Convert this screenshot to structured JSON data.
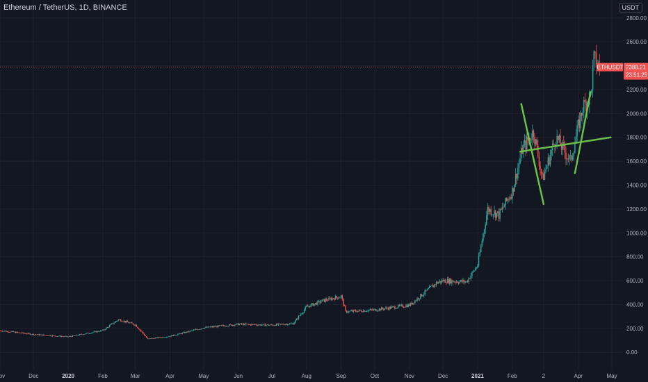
{
  "header": {
    "symbol_title": "Ethereum / TetherUS, 1D, BINANCE",
    "currency": "USDT"
  },
  "price_label": {
    "ticker": "ETHUSDT",
    "price": "2388.21",
    "countdown": "23:51:25",
    "value": 2388.21
  },
  "colors": {
    "background": "#131722",
    "up": "#26a69a",
    "down": "#ef5350",
    "trendline": "#6dbf4b",
    "grid": "#1e222d",
    "price_line": "#ef5350"
  },
  "chart_data": {
    "type": "candlestick",
    "title": "Ethereum / TetherUS, 1D, BINANCE",
    "ylim": [
      -150,
      2950
    ],
    "y_ticks": [
      "0.00",
      "200.00",
      "400.00",
      "600.00",
      "800.00",
      "1000.00",
      "1200.00",
      "1400.00",
      "1600.00",
      "1800.00",
      "2000.00",
      "2200.00",
      "2400.00",
      "2600.00",
      "2800.00"
    ],
    "x_ticks": [
      "Nov",
      "Dec",
      "2020",
      "Feb",
      "Mar",
      "Apr",
      "May",
      "Jun",
      "Jul",
      "Aug",
      "Sep",
      "Oct",
      "Nov",
      "Dec",
      "2021",
      "Feb",
      "2",
      "Apr",
      "May"
    ],
    "x_ticks_bold": [
      "2020",
      "2021"
    ],
    "price_path": [
      {
        "date": "2019-11-01",
        "price": 182
      },
      {
        "date": "2019-12-01",
        "price": 150
      },
      {
        "date": "2020-01-01",
        "price": 130
      },
      {
        "date": "2020-02-01",
        "price": 183
      },
      {
        "date": "2020-02-15",
        "price": 275
      },
      {
        "date": "2020-03-01",
        "price": 230
      },
      {
        "date": "2020-03-12",
        "price": 112
      },
      {
        "date": "2020-04-01",
        "price": 135
      },
      {
        "date": "2020-05-01",
        "price": 205
      },
      {
        "date": "2020-06-01",
        "price": 235
      },
      {
        "date": "2020-07-01",
        "price": 228
      },
      {
        "date": "2020-07-20",
        "price": 240
      },
      {
        "date": "2020-08-01",
        "price": 380
      },
      {
        "date": "2020-08-15",
        "price": 430
      },
      {
        "date": "2020-09-01",
        "price": 470
      },
      {
        "date": "2020-09-05",
        "price": 340
      },
      {
        "date": "2020-10-01",
        "price": 355
      },
      {
        "date": "2020-11-01",
        "price": 395
      },
      {
        "date": "2020-11-25",
        "price": 580
      },
      {
        "date": "2020-12-01",
        "price": 600
      },
      {
        "date": "2020-12-22",
        "price": 590
      },
      {
        "date": "2021-01-01",
        "price": 730
      },
      {
        "date": "2021-01-10",
        "price": 1200
      },
      {
        "date": "2021-01-20",
        "price": 1150
      },
      {
        "date": "2021-02-01",
        "price": 1350
      },
      {
        "date": "2021-02-10",
        "price": 1700
      },
      {
        "date": "2021-02-20",
        "price": 1850
      },
      {
        "date": "2021-02-28",
        "price": 1450
      },
      {
        "date": "2021-03-12",
        "price": 1800
      },
      {
        "date": "2021-03-25",
        "price": 1600
      },
      {
        "date": "2021-04-05",
        "price": 2050
      },
      {
        "date": "2021-04-12",
        "price": 2150
      },
      {
        "date": "2021-04-15",
        "price": 2450
      },
      {
        "date": "2021-04-20",
        "price": 2388
      }
    ],
    "trendlines": [
      {
        "from": {
          "date": "2021-02-08",
          "price": 1680
        },
        "to": {
          "date": "2021-04-30",
          "price": 1800
        }
      },
      {
        "from": {
          "date": "2021-02-09",
          "price": 2080
        },
        "to": {
          "date": "2021-03-01",
          "price": 1240
        }
      },
      {
        "from": {
          "date": "2021-03-29",
          "price": 1500
        },
        "to": {
          "date": "2021-04-12",
          "price": 2180
        }
      }
    ]
  }
}
